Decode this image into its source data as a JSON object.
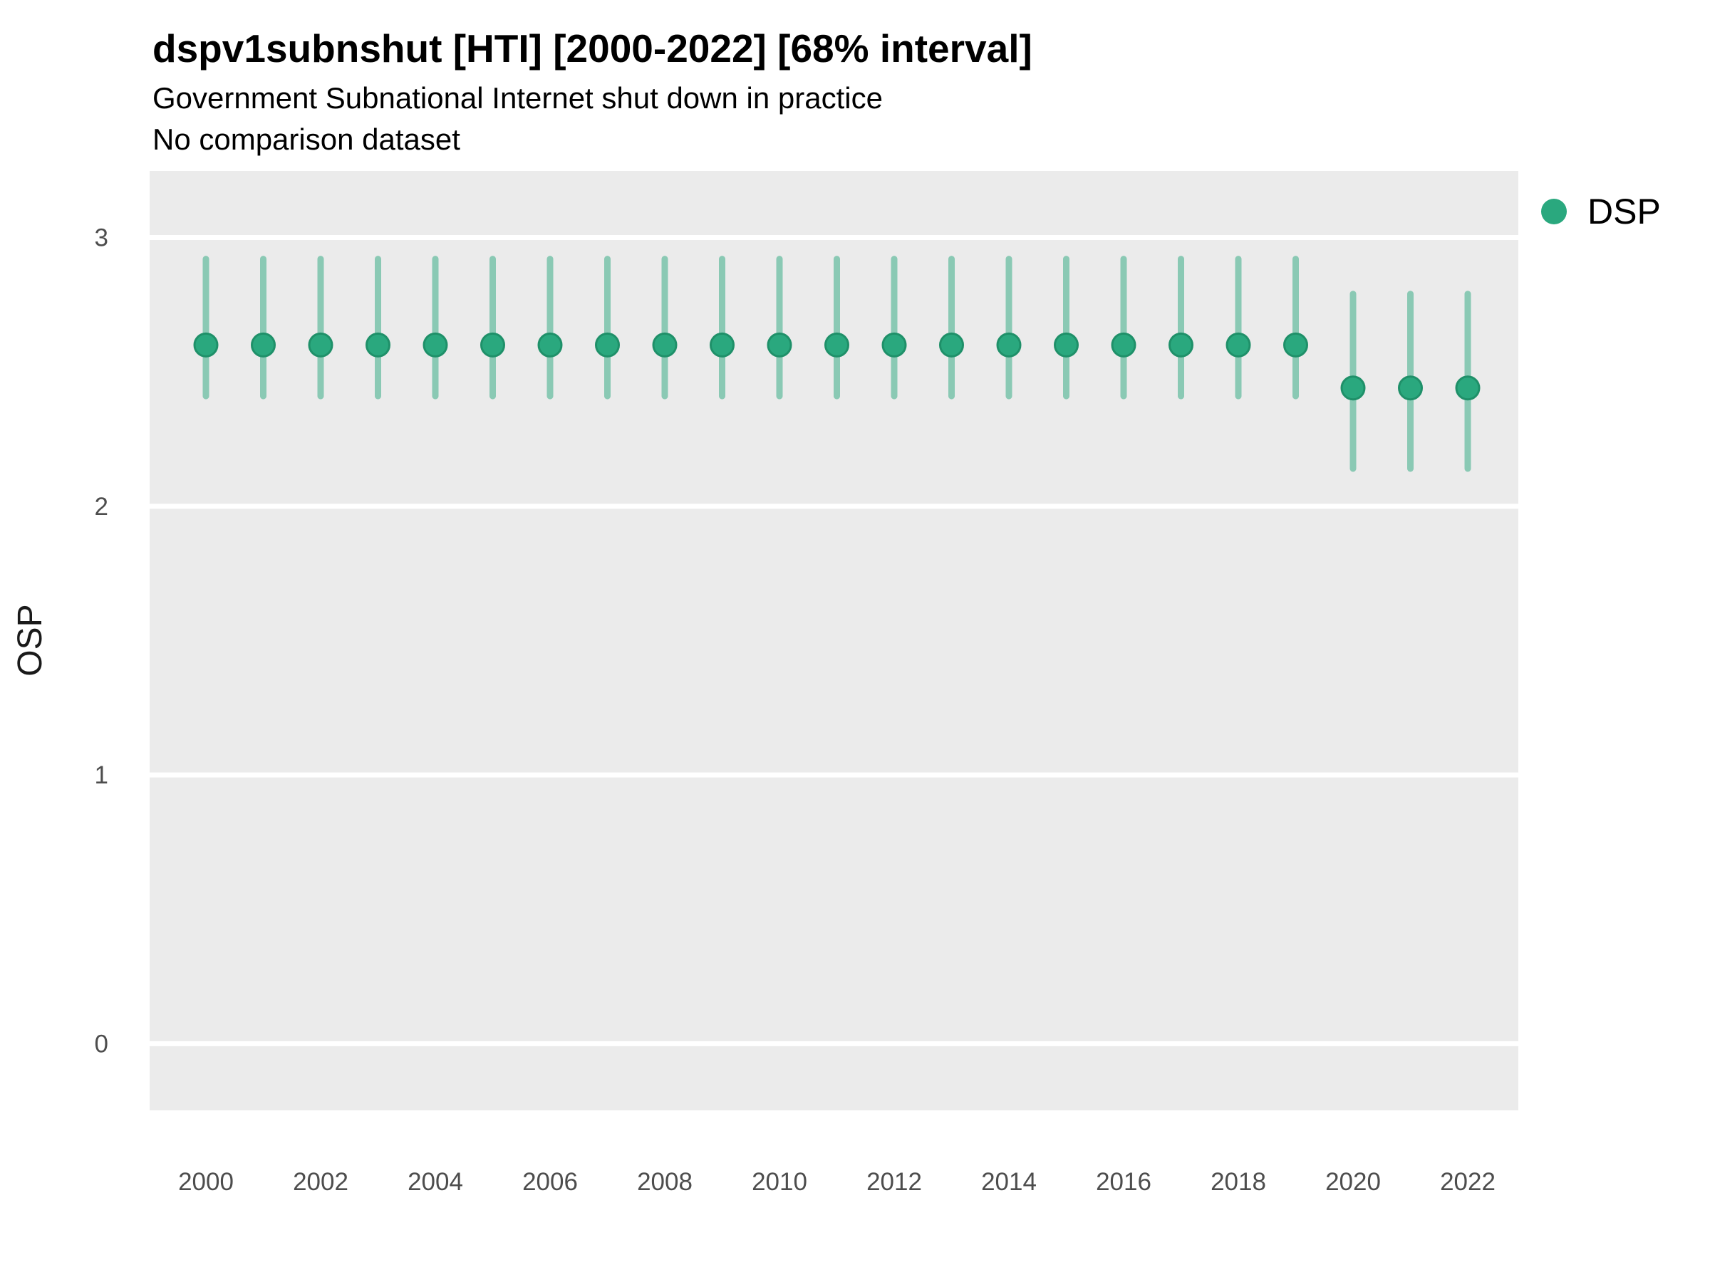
{
  "header": {
    "title": "dspv1subnshut [HTI] [2000-2022] [68% interval]",
    "subtitle": "Government Subnational Internet shut down in practice",
    "comparison_note": "No comparison dataset"
  },
  "legend": {
    "items": [
      {
        "label": "DSP",
        "color": "#2aa87e"
      }
    ]
  },
  "chart_data": {
    "type": "pointrange",
    "title": "dspv1subnshut [HTI] [2000-2022] [68% interval]",
    "subtitle": "Government Subnational Internet shut down in practice",
    "note": "No comparison dataset",
    "interval": "68%",
    "country": "HTI",
    "xlabel": "",
    "ylabel": "OSP",
    "x": [
      2000,
      2001,
      2002,
      2003,
      2004,
      2005,
      2006,
      2007,
      2008,
      2009,
      2010,
      2011,
      2012,
      2013,
      2014,
      2015,
      2016,
      2017,
      2018,
      2019,
      2020,
      2021,
      2022
    ],
    "series": [
      {
        "name": "DSP",
        "estimates": [
          2.6,
          2.6,
          2.6,
          2.6,
          2.6,
          2.6,
          2.6,
          2.6,
          2.6,
          2.6,
          2.6,
          2.6,
          2.6,
          2.6,
          2.6,
          2.6,
          2.6,
          2.6,
          2.6,
          2.6,
          2.44,
          2.44,
          2.44
        ],
        "lower": [
          2.41,
          2.41,
          2.41,
          2.41,
          2.41,
          2.41,
          2.41,
          2.41,
          2.41,
          2.41,
          2.41,
          2.41,
          2.41,
          2.41,
          2.41,
          2.41,
          2.41,
          2.41,
          2.41,
          2.41,
          2.14,
          2.14,
          2.14
        ],
        "upper": [
          2.92,
          2.92,
          2.92,
          2.92,
          2.92,
          2.92,
          2.92,
          2.92,
          2.92,
          2.92,
          2.92,
          2.92,
          2.92,
          2.92,
          2.92,
          2.92,
          2.92,
          2.92,
          2.92,
          2.92,
          2.79,
          2.79,
          2.79
        ],
        "point_color": "#2aa87e",
        "point_stroke": "#1f9069",
        "interval_color": "rgba(42,168,126,0.5)"
      }
    ],
    "xticks": [
      2000,
      2002,
      2004,
      2006,
      2008,
      2010,
      2012,
      2014,
      2016,
      2018,
      2020,
      2022
    ],
    "yticks": [
      0,
      1,
      2,
      3
    ],
    "xlim": [
      1999,
      2023
    ],
    "ylim": [
      -0.25,
      3.25
    ],
    "grid": "horizontal-major",
    "legend_position": "right",
    "panel_bg": "#ebebeb",
    "grid_color": "#ffffff",
    "axis_text_color": "#4d4d4d",
    "axis_title_color": "#1a1a1a"
  }
}
